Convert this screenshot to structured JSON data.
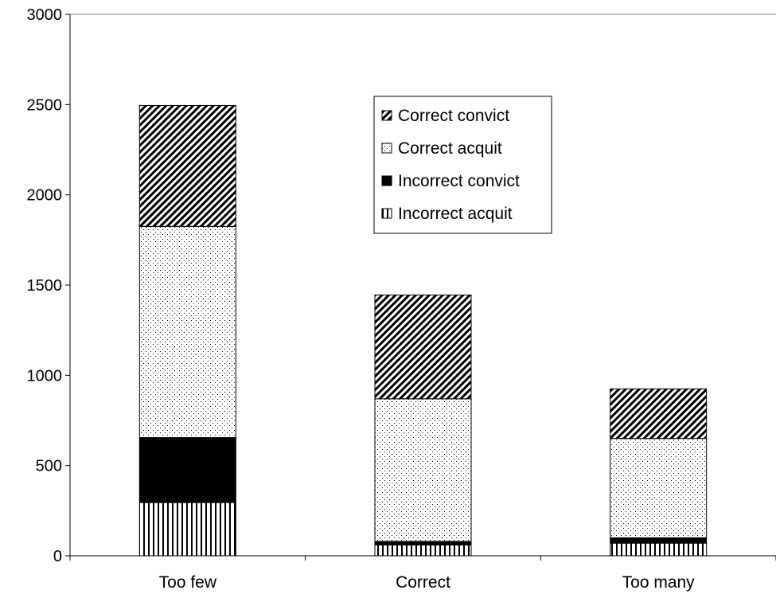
{
  "chart_data": {
    "type": "bar",
    "stacked": true,
    "categories": [
      "Too few",
      "Correct",
      "Too many"
    ],
    "series": [
      {
        "name": "Incorrect acquit",
        "pattern": "vertical-lines",
        "values": [
          295,
          60,
          70
        ]
      },
      {
        "name": "Incorrect convict",
        "pattern": "solid-black",
        "values": [
          360,
          20,
          30
        ]
      },
      {
        "name": "Correct acquit",
        "pattern": "dots",
        "values": [
          1170,
          790,
          550
        ]
      },
      {
        "name": "Correct convict",
        "pattern": "diagonal-lines",
        "values": [
          670,
          575,
          275
        ]
      }
    ],
    "legend_order": [
      "Correct convict",
      "Correct acquit",
      "Incorrect convict",
      "Incorrect acquit"
    ],
    "ylim": [
      0,
      3000
    ],
    "yticks": [
      "0",
      "500",
      "1000",
      "1500",
      "2000",
      "2500",
      "3000"
    ],
    "ytick_values": [
      0,
      500,
      1000,
      1500,
      2000,
      2500,
      3000
    ],
    "title": "",
    "xlabel": "",
    "ylabel": "",
    "grid": false,
    "legend_position": "top-center",
    "colors": {
      "stroke": "#000000",
      "background": "#ffffff"
    }
  }
}
